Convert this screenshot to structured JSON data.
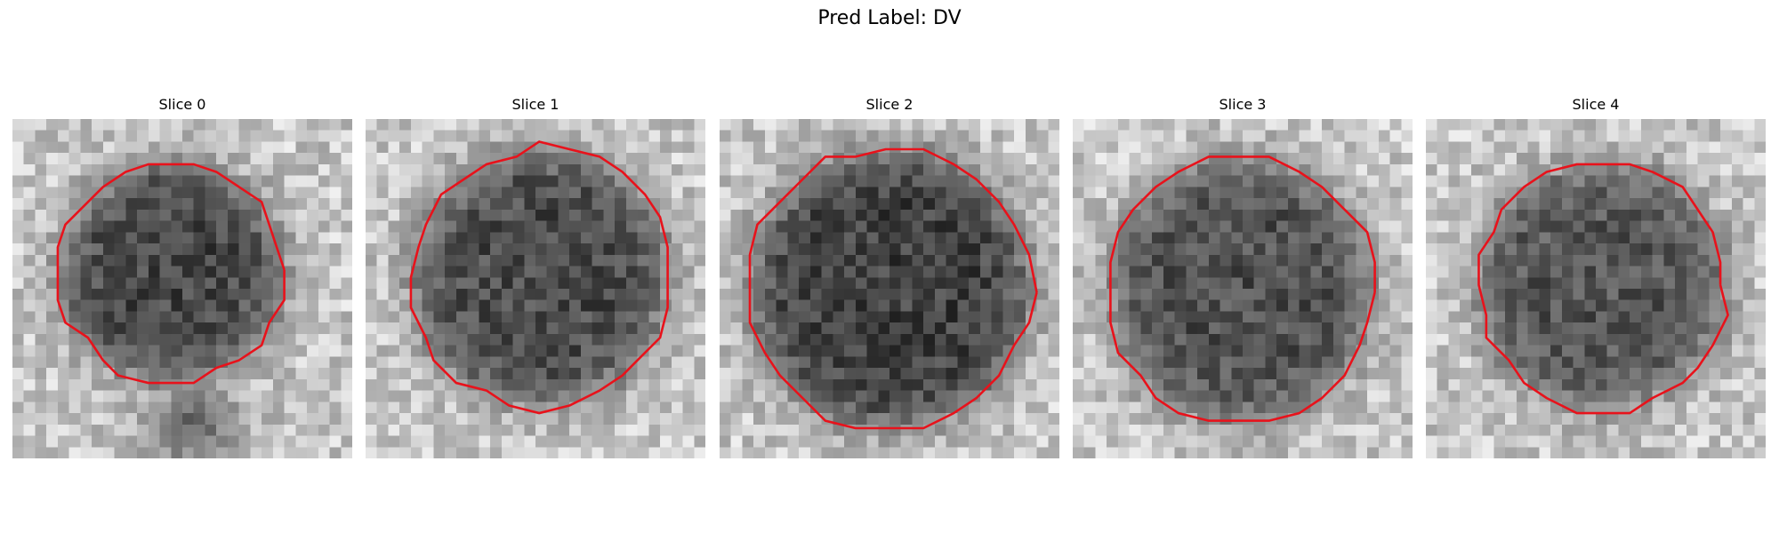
{
  "figure": {
    "title": "Pred Label: DV",
    "contour_color": "#e8121b",
    "colormap": "gray",
    "panels": [
      {
        "title": "Slice 0"
      },
      {
        "title": "Slice 1"
      },
      {
        "title": "Slice 2"
      },
      {
        "title": "Slice 3"
      },
      {
        "title": "Slice 4"
      }
    ]
  }
}
